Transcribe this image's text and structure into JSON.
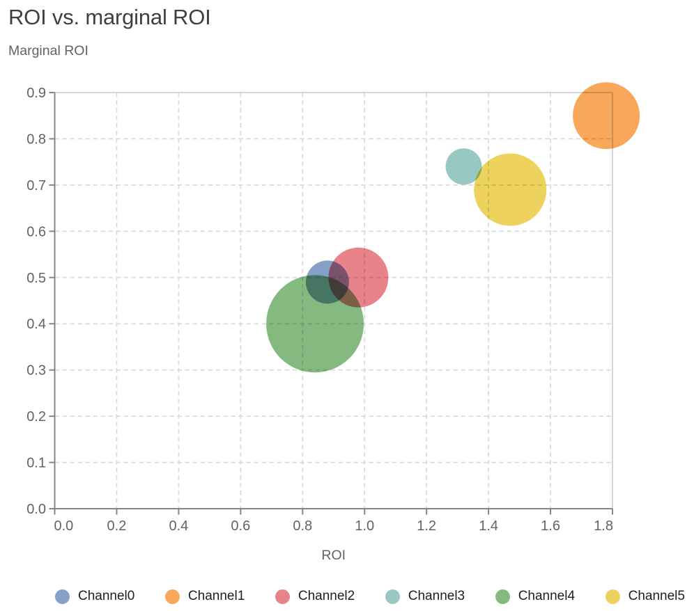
{
  "chart_data": {
    "type": "scatter",
    "subtype": "bubble",
    "title": "ROI vs. marginal ROI",
    "ylabel": "Marginal ROI",
    "xlabel": "ROI",
    "xlim": [
      0,
      1.8
    ],
    "ylim": [
      0,
      0.9
    ],
    "x_tick_labels": [
      "0.0",
      "0.2",
      "0.4",
      "0.6",
      "0.8",
      "1.0",
      "1.2",
      "1.4",
      "1.6",
      "1.8"
    ],
    "y_tick_labels": [
      "0.0",
      "0.1",
      "0.2",
      "0.3",
      "0.4",
      "0.5",
      "0.6",
      "0.7",
      "0.8",
      "0.9"
    ],
    "grid": "dashed",
    "legend_position": "bottom",
    "series": [
      {
        "name": "Channel0",
        "color": "#87A0C7",
        "x": 0.88,
        "y": 0.49,
        "radius_px": 31
      },
      {
        "name": "Channel1",
        "color": "#F9A75A",
        "x": 1.78,
        "y": 0.85,
        "radius_px": 48
      },
      {
        "name": "Channel2",
        "color": "#E9838A",
        "x": 0.98,
        "y": 0.5,
        "radius_px": 43
      },
      {
        "name": "Channel3",
        "color": "#97C8C2",
        "x": 1.32,
        "y": 0.74,
        "radius_px": 26
      },
      {
        "name": "Channel4",
        "color": "#84BA80",
        "x": 0.84,
        "y": 0.4,
        "radius_px": 70
      },
      {
        "name": "Channel5",
        "color": "#EDD25E",
        "x": 1.47,
        "y": 0.69,
        "radius_px": 52
      }
    ],
    "colors": {
      "title_text": "#3c4043",
      "axis_text": "#5f6368",
      "legend_text": "#1f1f1f",
      "axis_line": "#80868b",
      "gridline": "#d9dcdf",
      "border_line": "#cdd1d4"
    }
  }
}
